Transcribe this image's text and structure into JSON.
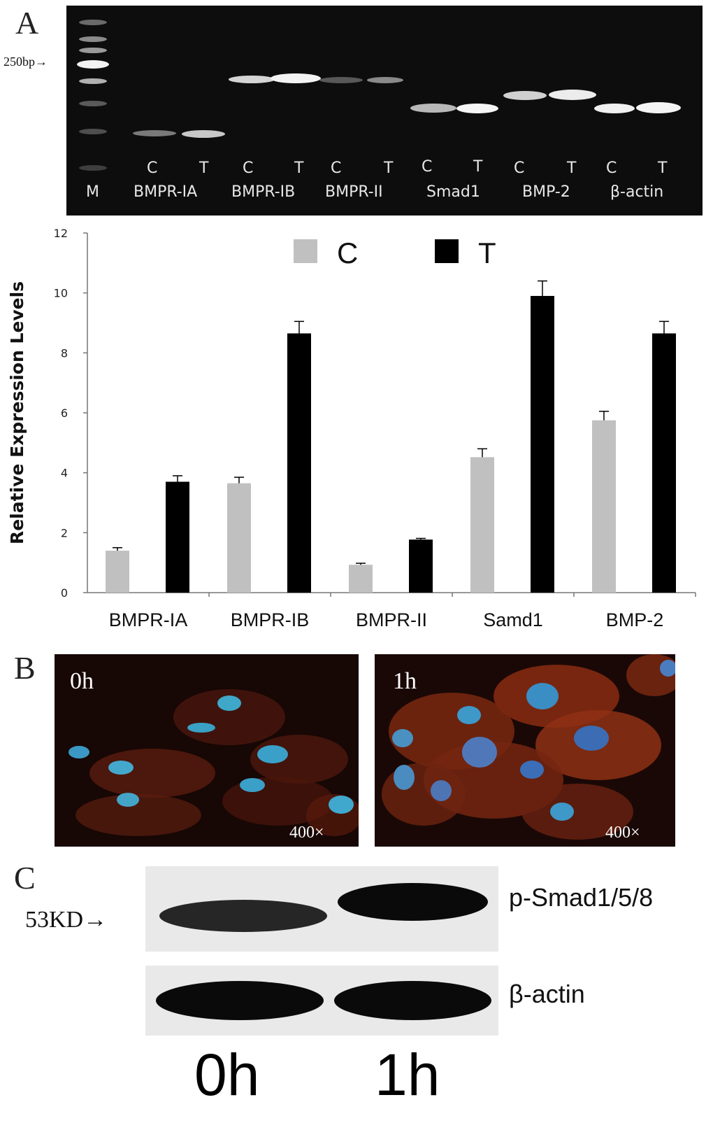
{
  "panels": {
    "a_letter": "A",
    "b_letter": "B",
    "c_letter": "C"
  },
  "gel": {
    "marker_label": "250bp→",
    "lane_m": "M",
    "lane_cond": [
      "C",
      "T",
      "C",
      "T",
      "C",
      "T",
      "C",
      "T",
      "C",
      "T",
      "C",
      "T"
    ],
    "genes": [
      "BMPR-IA",
      "BMPR-IB",
      "BMPR-II",
      "Smad1",
      "BMP-2",
      "β-actin"
    ]
  },
  "chart_data": {
    "type": "bar",
    "categories": [
      "BMPR-IA",
      "BMPR-IB",
      "BMPR-II",
      "Samd1",
      "BMP-2"
    ],
    "series": [
      {
        "name": "C",
        "color": "#c0c0c0",
        "values": [
          1.4,
          3.65,
          0.93,
          4.52,
          5.75
        ],
        "errors": [
          0.1,
          0.2,
          0.05,
          0.28,
          0.3
        ]
      },
      {
        "name": "T",
        "color": "#000000",
        "values": [
          3.7,
          8.65,
          1.77,
          9.9,
          8.65
        ],
        "errors": [
          0.2,
          0.4,
          0.04,
          0.5,
          0.4
        ]
      }
    ],
    "ylabel": "Relative Expression Levels",
    "ylim": [
      0,
      12
    ],
    "yticks": [
      0,
      2,
      4,
      6,
      8,
      10,
      12
    ],
    "legend": "top"
  },
  "microscopy": {
    "left_time": "0h",
    "right_time": "1h",
    "magnification": "400×"
  },
  "western": {
    "marker": "53KD→",
    "target_label": "p-Smad1/5/8",
    "control_label": "β-actin",
    "time_0": "0h",
    "time_1": "1h"
  }
}
